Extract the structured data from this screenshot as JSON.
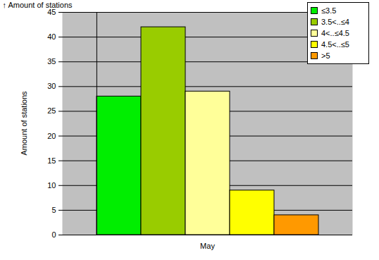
{
  "chart_data": {
    "type": "bar",
    "categories": [
      "May"
    ],
    "series": [
      {
        "name": "≤3.5",
        "color": "#00ee00",
        "values": [
          28
        ]
      },
      {
        "name": "3.5<..≤4",
        "color": "#99cc00",
        "values": [
          42
        ]
      },
      {
        "name": "4<..≤4.5",
        "color": "#ffff99",
        "values": [
          29
        ]
      },
      {
        "name": "4.5<..≤5",
        "color": "#ffff00",
        "values": [
          9
        ]
      },
      {
        "name": ">5",
        "color": "#ff9900",
        "values": [
          4
        ]
      }
    ],
    "ylabel": "Amount of stations",
    "ylim": [
      0,
      45
    ],
    "yticks": [
      0,
      5,
      10,
      15,
      20,
      25,
      30,
      35,
      40,
      45
    ],
    "grid": true,
    "legend": "top-right"
  }
}
